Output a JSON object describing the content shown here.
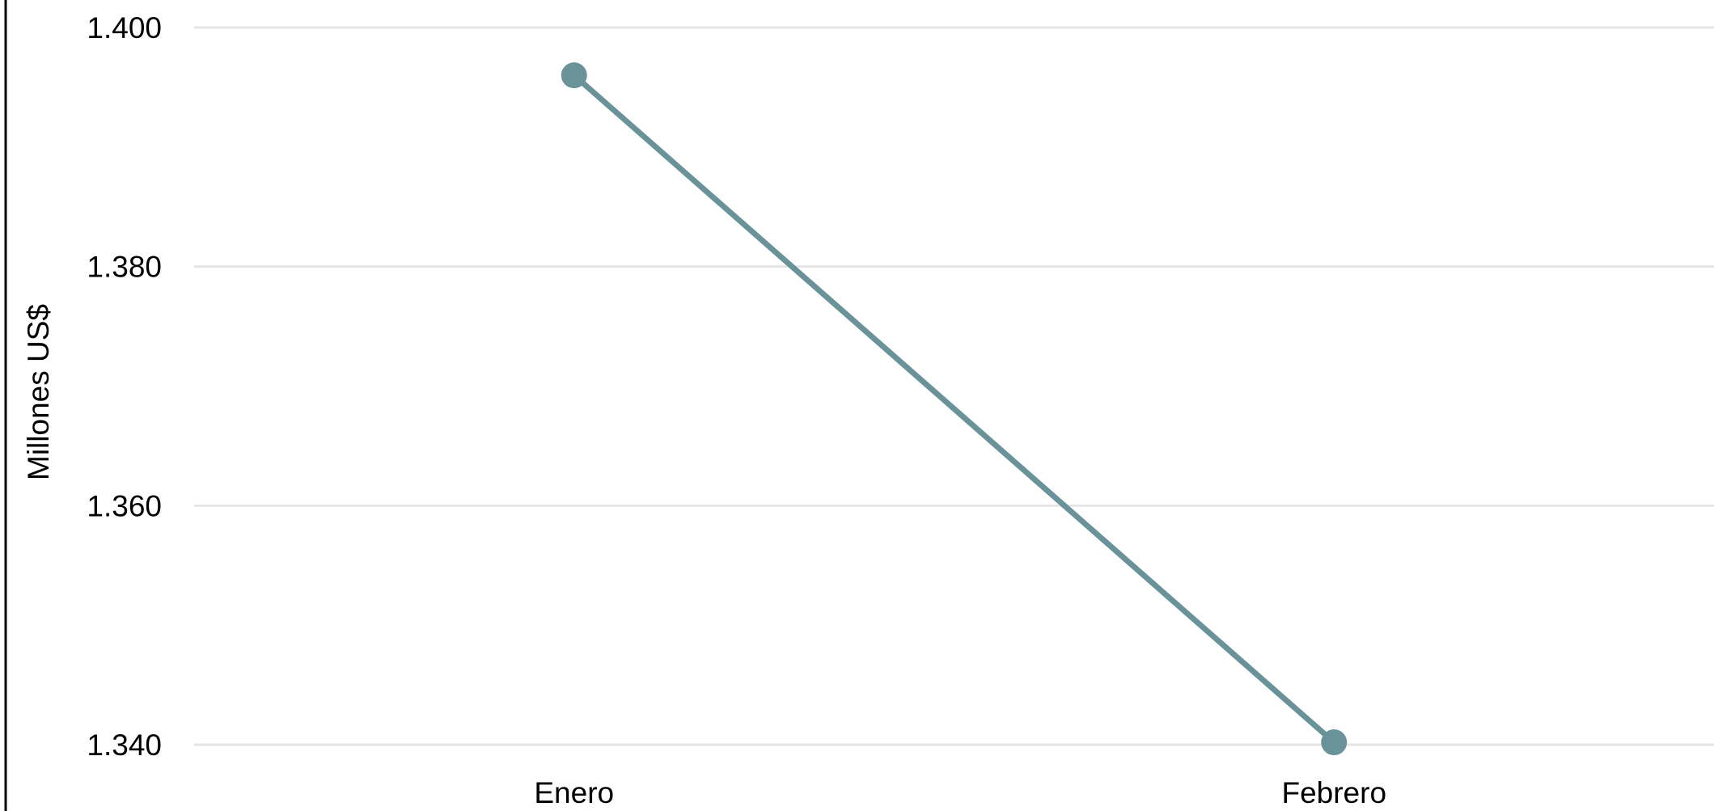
{
  "chart_data": {
    "type": "line",
    "categories": [
      "Enero",
      "Febrero"
    ],
    "series": [
      {
        "values": [
          1396,
          1340.2
        ]
      }
    ],
    "ylabel": "Millones US$",
    "ylim": [
      1340,
      1400
    ],
    "yticks": [
      "1.340",
      "1.360",
      "1.380",
      "1.400"
    ],
    "grid": true,
    "line_color": "#6a9399",
    "grid_color": "#e6e6e6"
  }
}
